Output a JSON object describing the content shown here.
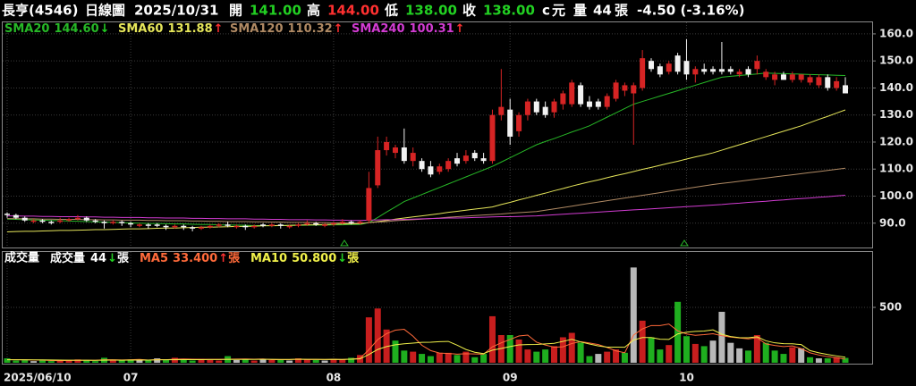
{
  "header": {
    "symbol": "長亨(4546)",
    "period": "日線圖",
    "date": "2025/10/31",
    "quote": [
      {
        "label": "開",
        "value": "141.00",
        "color": "#22d022"
      },
      {
        "label": "高",
        "value": "144.00",
        "color": "#ff3030"
      },
      {
        "label": "低",
        "value": "138.00",
        "color": "#22d022"
      },
      {
        "label": "收",
        "value": "138.00",
        "color": "#22d022"
      }
    ],
    "unit_mark": "c",
    "unit": "元",
    "volume_label": "量",
    "volume": "44",
    "volume_unit": "張",
    "change": "-4.50 (-3.16%)"
  },
  "chart_data": {
    "type": "candlestick",
    "categories": [
      "2025/06/10",
      null,
      null,
      null,
      null,
      null,
      null,
      null,
      null,
      null,
      null,
      null,
      null,
      null,
      "07",
      null,
      null,
      null,
      null,
      null,
      null,
      null,
      null,
      null,
      null,
      null,
      null,
      null,
      null,
      null,
      null,
      null,
      null,
      null,
      null,
      null,
      null,
      "08",
      null,
      null,
      null,
      null,
      null,
      null,
      null,
      null,
      null,
      null,
      null,
      null,
      null,
      null,
      null,
      null,
      null,
      null,
      null,
      "09",
      null,
      null,
      null,
      null,
      null,
      null,
      null,
      null,
      null,
      null,
      null,
      null,
      null,
      null,
      null,
      null,
      null,
      null,
      null,
      "10",
      null,
      null,
      null,
      null,
      null,
      null,
      null,
      null,
      null,
      null,
      null,
      null,
      null,
      null,
      null,
      null,
      null,
      null
    ],
    "open": [
      93.5,
      93,
      92,
      90.5,
      91,
      90.5,
      90.5,
      91,
      91.5,
      92,
      91,
      90.5,
      90,
      90.5,
      90,
      89,
      89.5,
      89.5,
      89,
      88.5,
      89,
      88.5,
      88,
      88.5,
      89,
      89.5,
      88.5,
      89,
      88.5,
      89.5,
      89,
      89.5,
      88.5,
      89,
      89.5,
      90,
      89,
      89.5,
      90,
      90.5,
      90,
      91,
      104,
      117,
      116,
      118,
      113,
      113,
      111,
      109,
      110,
      114,
      113,
      116,
      114,
      113,
      130,
      132,
      124,
      130,
      135,
      133,
      131,
      134,
      134,
      141,
      135,
      135,
      133,
      136,
      139,
      138,
      140,
      150,
      148,
      146,
      152,
      150,
      145,
      147,
      147,
      147,
      147,
      145,
      147,
      147,
      144,
      143,
      145,
      143,
      143,
      142,
      141,
      144,
      140,
      141
    ],
    "high": [
      94,
      93.5,
      92.5,
      91.5,
      91.5,
      91,
      92,
      92,
      93,
      92.5,
      91.5,
      91,
      91,
      91,
      90.5,
      90,
      90,
      90,
      89.5,
      89.5,
      89.5,
      89,
      89,
      89.5,
      90,
      90.5,
      89.5,
      89.5,
      89.5,
      90,
      90,
      90,
      89.5,
      90,
      91,
      90.5,
      90,
      90.5,
      91.5,
      91,
      91,
      109,
      122,
      122,
      119,
      125,
      118,
      114,
      113,
      112,
      114,
      116,
      117,
      117,
      116,
      132,
      147,
      136,
      131,
      136,
      136,
      135,
      136,
      139,
      143,
      142,
      137,
      136,
      138,
      143,
      142,
      142,
      154,
      151,
      149,
      150,
      153,
      158,
      148,
      149,
      148,
      157,
      148,
      147,
      148,
      152,
      147,
      146,
      146,
      146,
      145,
      145,
      145,
      145,
      144,
      144
    ],
    "low": [
      92,
      91.5,
      90.5,
      90,
      90,
      89.5,
      90,
      90.5,
      91,
      90.5,
      90,
      88,
      89.5,
      89,
      88.5,
      88.5,
      88,
      88.5,
      87.5,
      88,
      87.5,
      87,
      87.5,
      88,
      88.5,
      88.5,
      88,
      87.5,
      88,
      88.5,
      88.5,
      88,
      88,
      88.5,
      89,
      89,
      88.5,
      89,
      89.5,
      89.5,
      89.5,
      90,
      103,
      115,
      114,
      112,
      111,
      109,
      107,
      108,
      109,
      111,
      112,
      113,
      112,
      112,
      128,
      119,
      122,
      128,
      130,
      129,
      129,
      132,
      133,
      133,
      132,
      132,
      132,
      135,
      137,
      119,
      139,
      146,
      144,
      145,
      145,
      143,
      142,
      145,
      145,
      145,
      145,
      144,
      144,
      145,
      143,
      141,
      143,
      142,
      142,
      141,
      140,
      139,
      139,
      138
    ],
    "close": [
      93,
      92,
      91,
      91,
      90.5,
      90,
      91,
      91.5,
      92,
      91,
      90.5,
      90,
      90.5,
      90,
      89.5,
      89.5,
      89,
      89,
      88.5,
      89,
      88.5,
      88,
      88.5,
      89,
      89.5,
      89,
      89,
      88.5,
      89,
      89,
      89.5,
      89,
      89,
      89.5,
      90,
      89.5,
      89.5,
      90,
      90.5,
      90,
      90.5,
      103,
      117,
      120,
      118,
      113,
      116,
      110,
      108,
      111,
      113,
      112,
      115,
      114,
      113,
      130,
      133,
      122,
      130,
      135,
      131,
      130,
      135,
      138,
      142,
      134,
      133,
      133,
      137,
      142,
      141,
      141,
      151,
      147,
      145,
      149,
      146,
      145,
      147,
      146,
      146,
      146,
      146,
      146,
      145,
      150,
      146,
      145,
      143,
      145,
      145,
      144,
      144,
      140,
      142.5,
      138
    ],
    "up_color": "#d62424",
    "down_color": "#f2f2f2",
    "ylim": [
      81,
      164.6
    ],
    "yticks": [
      {
        "value": 90,
        "label": "90.0"
      },
      {
        "value": 100,
        "label": "100.0"
      },
      {
        "value": 110,
        "label": "110.0"
      },
      {
        "value": 120,
        "label": "120.0"
      },
      {
        "value": 130,
        "label": "130.0"
      },
      {
        "value": 140,
        "label": "140.0"
      },
      {
        "value": 150,
        "label": "150.0"
      },
      {
        "value": 160,
        "label": "160.0"
      }
    ],
    "grid": true,
    "overlays": [
      {
        "name": "SMA20",
        "label": "144.60",
        "trend": "↓",
        "color": "#27b827",
        "values": [
          91.5,
          91.4,
          91.3,
          91.2,
          91.1,
          91.0,
          90.9,
          90.8,
          90.7,
          90.6,
          90.5,
          90.4,
          90.3,
          90.2,
          90.1,
          90.0,
          89.9,
          89.9,
          89.8,
          89.7,
          89.7,
          89.6,
          89.5,
          89.5,
          89.4,
          89.3,
          89.3,
          89.2,
          89.1,
          89.1,
          89.0,
          89.1,
          89.1,
          89.2,
          89.2,
          89.3,
          89.3,
          89.4,
          89.4,
          89.5,
          89.5,
          90.2,
          92.1,
          94.1,
          96.0,
          98.0,
          99.3,
          100.6,
          101.9,
          103.2,
          104.5,
          105.8,
          107.1,
          108.4,
          109.7,
          111.0,
          112.6,
          114.2,
          115.8,
          117.4,
          119.0,
          120.2,
          121.3,
          122.5,
          123.7,
          124.8,
          126.0,
          127.6,
          129.2,
          130.8,
          132.4,
          134.0,
          135,
          136,
          137,
          138,
          139,
          140,
          141,
          142,
          143,
          144,
          144.3,
          144.6,
          144.9,
          145.2,
          145.5,
          145.4,
          145.3,
          145.2,
          145.1,
          145.0,
          144.9,
          144.8,
          144.7,
          144.6
        ]
      },
      {
        "name": "SMA60",
        "label": "131.88",
        "trend": "↑",
        "color": "#e6e65a",
        "values": [
          86.8,
          86.9,
          87.0,
          87.0,
          87.1,
          87.2,
          87.3,
          87.3,
          87.4,
          87.5,
          87.6,
          87.6,
          87.7,
          87.8,
          87.9,
          87.9,
          88.0,
          88.1,
          88.2,
          88.2,
          88.3,
          88.4,
          88.5,
          88.5,
          88.6,
          88.7,
          88.8,
          88.8,
          88.9,
          89.0,
          89.1,
          89.1,
          89.2,
          89.3,
          89.4,
          89.4,
          89.5,
          89.6,
          89.7,
          89.7,
          89.8,
          90.2,
          90.6,
          91.0,
          91.5,
          91.9,
          92.3,
          92.7,
          93.1,
          93.5,
          94.0,
          94.4,
          94.8,
          95.2,
          95.6,
          96.0,
          96.9,
          97.7,
          98.6,
          99.4,
          100.3,
          101.1,
          102.0,
          102.8,
          103.7,
          104.5,
          105.3,
          106.0,
          106.8,
          107.6,
          108.3,
          109.1,
          109.9,
          110.6,
          111.4,
          112.2,
          112.9,
          113.7,
          114.5,
          115.2,
          116.0,
          117,
          118,
          119,
          120,
          121,
          122,
          123,
          124,
          125,
          126,
          127.2,
          128.4,
          129.5,
          130.7,
          131.88
        ]
      },
      {
        "name": "SMA120",
        "label": "110.32",
        "trend": "↑",
        "color": "#b08a64",
        "values": [
          91.7,
          91.7,
          91.6,
          91.6,
          91.5,
          91.5,
          91.4,
          91.4,
          91.4,
          91.3,
          91.3,
          91.2,
          91.2,
          91.1,
          91.1,
          91.1,
          91.0,
          91.0,
          90.9,
          90.9,
          90.9,
          90.8,
          90.8,
          90.7,
          90.7,
          90.6,
          90.6,
          90.6,
          90.5,
          90.5,
          90.4,
          90.4,
          90.3,
          90.3,
          90.3,
          90.2,
          90.2,
          90.1,
          90.1,
          90.0,
          90.0,
          90.2,
          90.4,
          90.6,
          90.9,
          91.1,
          91.3,
          91.5,
          91.7,
          91.9,
          92.2,
          92.4,
          92.6,
          92.8,
          93.0,
          93.2,
          93.4,
          93.7,
          93.9,
          94.1,
          94.3,
          94.8,
          95.3,
          95.8,
          96.3,
          96.8,
          97.3,
          97.8,
          98.3,
          98.8,
          99.3,
          99.8,
          100.3,
          100.8,
          101.3,
          101.8,
          102.3,
          102.8,
          103.3,
          103.8,
          104.3,
          104.7,
          105.1,
          105.5,
          105.9,
          106.3,
          106.7,
          107.1,
          107.5,
          107.9,
          108.3,
          108.7,
          109.1,
          109.5,
          109.9,
          110.32
        ]
      },
      {
        "name": "SMA240",
        "label": "100.31",
        "trend": "↑",
        "color": "#d23cd2",
        "values": [
          92.7,
          92.7,
          92.6,
          92.6,
          92.5,
          92.5,
          92.4,
          92.4,
          92.4,
          92.3,
          92.3,
          92.2,
          92.2,
          92.1,
          92.1,
          92.1,
          92.0,
          92.0,
          91.9,
          91.9,
          91.9,
          91.8,
          91.8,
          91.7,
          91.7,
          91.6,
          91.6,
          91.6,
          91.5,
          91.5,
          91.4,
          91.4,
          91.3,
          91.3,
          91.3,
          91.2,
          91.2,
          91.1,
          91.1,
          91.0,
          91.0,
          91.1,
          91.2,
          91.3,
          91.3,
          91.4,
          91.5,
          91.6,
          91.7,
          91.8,
          91.9,
          91.9,
          92.0,
          92.1,
          92.2,
          92.3,
          92.4,
          92.4,
          92.5,
          92.6,
          92.7,
          92.9,
          93.1,
          93.3,
          93.5,
          93.7,
          93.9,
          94.1,
          94.3,
          94.5,
          94.7,
          94.9,
          95.1,
          95.3,
          95.5,
          95.7,
          95.9,
          96.1,
          96.3,
          96.5,
          96.7,
          96.9,
          97.2,
          97.4,
          97.7,
          97.9,
          98.1,
          98.4,
          98.6,
          98.9,
          99.1,
          99.3,
          99.6,
          99.8,
          100.1,
          100.31
        ]
      }
    ],
    "volume": {
      "title": "成交量",
      "name": "成交量",
      "label": "44",
      "trend": "↓",
      "unit": "張",
      "colors": {
        "up": "#c81e1e",
        "down": "#1fae1f",
        "flat": "#b8b8b8"
      },
      "ylim": [
        0,
        1000
      ],
      "yticks": [
        500
      ],
      "values": [
        40,
        20,
        25,
        15,
        20,
        15,
        20,
        25,
        30,
        20,
        15,
        45,
        25,
        20,
        30,
        30,
        20,
        40,
        25,
        45,
        30,
        20,
        35,
        25,
        20,
        60,
        25,
        30,
        20,
        35,
        25,
        30,
        20,
        40,
        30,
        25,
        20,
        35,
        30,
        45,
        70,
        410,
        490,
        300,
        200,
        110,
        100,
        80,
        60,
        90,
        90,
        70,
        100,
        50,
        80,
        420,
        250,
        250,
        210,
        120,
        100,
        120,
        150,
        230,
        270,
        180,
        60,
        80,
        100,
        120,
        90,
        860,
        380,
        230,
        120,
        160,
        550,
        240,
        170,
        150,
        200,
        460,
        180,
        130,
        110,
        250,
        180,
        110,
        80,
        140,
        130,
        50,
        40,
        40,
        50,
        44
      ],
      "overlays": [
        {
          "name": "MA5",
          "label": "33.400",
          "trend": "↑",
          "unit": "張",
          "color": "#ff6a3a",
          "values": [
            28,
            27,
            26,
            25,
            24,
            20,
            19,
            21,
            22,
            22,
            22,
            27,
            27,
            25,
            27,
            30,
            24,
            29,
            27,
            32,
            34,
            32,
            31,
            31,
            31,
            32,
            33,
            34,
            32,
            34,
            28,
            28,
            28,
            32,
            29,
            29,
            29,
            30,
            29,
            33,
            40,
            118,
            209,
            263,
            294,
            302,
            240,
            158,
            110,
            88,
            84,
            78,
            82,
            80,
            78,
            144,
            180,
            210,
            242,
            250,
            186,
            160,
            140,
            144,
            174,
            190,
            178,
            164,
            138,
            108,
            90,
            250,
            306,
            336,
            336,
            350,
            288,
            260,
            248,
            254,
            262,
            244,
            232,
            224,
            216,
            226,
            170,
            156,
            146,
            152,
            128,
            90,
            70,
            55,
            45,
            33.4
          ]
        },
        {
          "name": "MA10",
          "label": "50.800",
          "trend": "↓",
          "unit": "張",
          "color": "#f0f04a",
          "values": [
            27,
            27,
            27,
            26,
            26,
            25,
            24,
            23,
            23,
            23,
            22,
            23,
            24,
            23,
            24,
            25,
            24,
            26,
            27,
            27,
            28,
            28,
            28,
            29,
            29,
            30,
            30,
            30,
            30,
            31,
            31,
            30,
            30,
            32,
            31,
            31,
            30,
            31,
            30,
            32,
            35,
            75,
            120,
            146,
            162,
            171,
            177,
            184,
            186,
            191,
            193,
            159,
            120,
            95,
            83,
            114,
            129,
            146,
            161,
            164,
            165,
            170,
            175,
            193,
            212,
            188,
            169,
            152,
            141,
            141,
            140,
            205,
            228,
            228,
            213,
            211,
            260,
            276,
            283,
            286,
            297,
            257,
            237,
            227,
            226,
            235,
            198,
            180,
            172,
            171,
            164,
            110,
            90,
            75,
            62,
            50.8
          ]
        }
      ]
    }
  }
}
